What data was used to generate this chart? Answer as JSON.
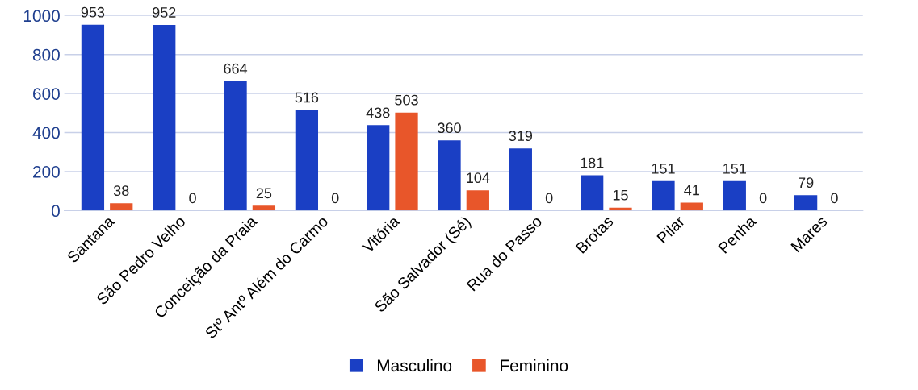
{
  "chart_data": {
    "type": "bar",
    "categories": [
      "Santana",
      "São Pedro Velho",
      "Conceição da Praia",
      "Stº Antº Além do Carmo",
      "Vitória",
      "São Salvador (Sé)",
      "Rua do Passo",
      "Brotas",
      "Pilar",
      "Penha",
      "Mares"
    ],
    "series": [
      {
        "name": "Masculino",
        "color": "#1a3fc4",
        "values": [
          953,
          952,
          664,
          516,
          438,
          360,
          319,
          181,
          151,
          151,
          79
        ]
      },
      {
        "name": "Feminino",
        "color": "#e8562a",
        "values": [
          38,
          0,
          25,
          0,
          503,
          104,
          0,
          15,
          41,
          0,
          0
        ]
      }
    ],
    "ylim": [
      0,
      1000
    ],
    "yticks": [
      0,
      200,
      400,
      600,
      800,
      1000
    ],
    "grid": "y",
    "legend": "bottom",
    "data_labels": true
  }
}
